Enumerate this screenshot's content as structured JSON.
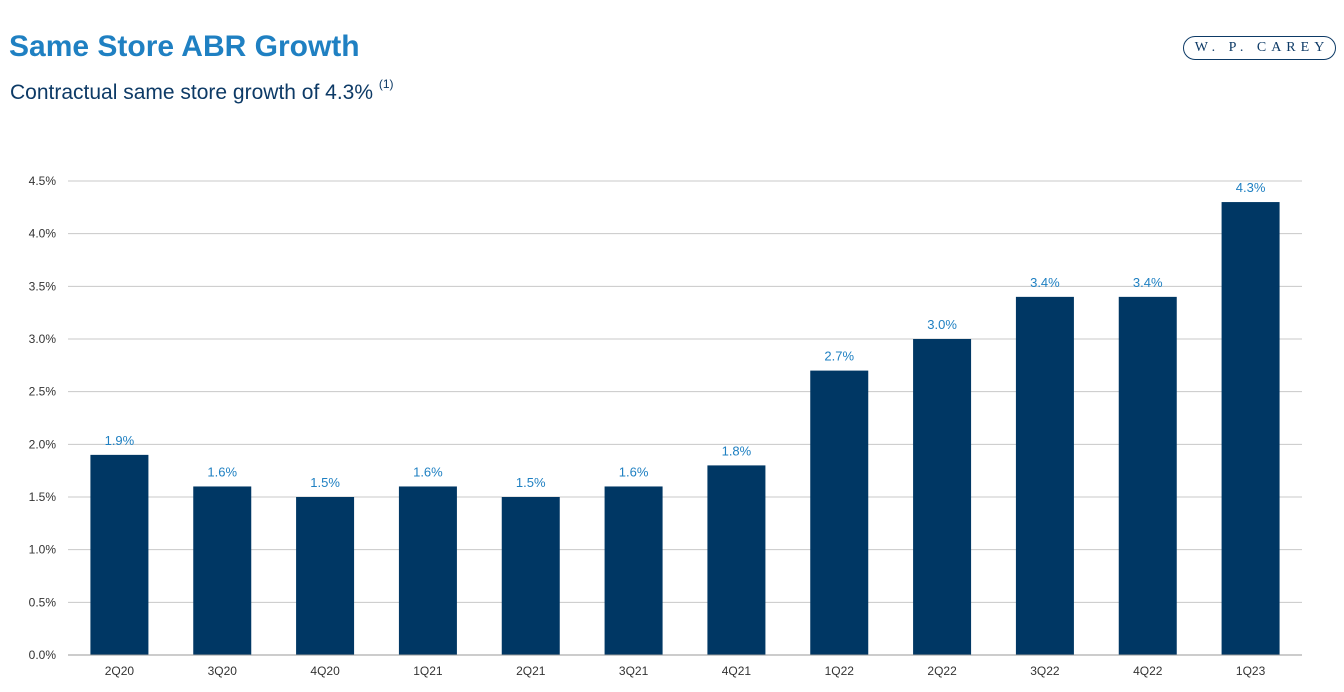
{
  "header": {
    "title": "Same Store ABR Growth",
    "subtitle": "Contractual same store growth of 4.3%",
    "subtitle_note": "(1)",
    "logo_text": "W. P. CAREY"
  },
  "colors": {
    "bar": "#003764",
    "data_label": "#1f80c2",
    "title": "#1f80c2",
    "gridline": "#c8c8c8"
  },
  "chart_data": {
    "type": "bar",
    "title": "",
    "xlabel": "",
    "ylabel": "",
    "categories": [
      "2Q20",
      "3Q20",
      "4Q20",
      "1Q21",
      "2Q21",
      "3Q21",
      "4Q21",
      "1Q22",
      "2Q22",
      "3Q22",
      "4Q22",
      "1Q23"
    ],
    "values": [
      1.9,
      1.6,
      1.5,
      1.6,
      1.5,
      1.6,
      1.8,
      2.7,
      3.0,
      3.4,
      3.4,
      4.3
    ],
    "value_labels": [
      "1.9%",
      "1.6%",
      "1.5%",
      "1.6%",
      "1.5%",
      "1.6%",
      "1.8%",
      "2.7%",
      "3.0%",
      "3.4%",
      "3.4%",
      "4.3%"
    ],
    "y_ticks": [
      "0.0%",
      "0.5%",
      "1.0%",
      "1.5%",
      "2.0%",
      "2.5%",
      "3.0%",
      "3.5%",
      "4.0%",
      "4.5%"
    ],
    "ylim": [
      0,
      4.5
    ],
    "grid": true,
    "legend": "none"
  }
}
